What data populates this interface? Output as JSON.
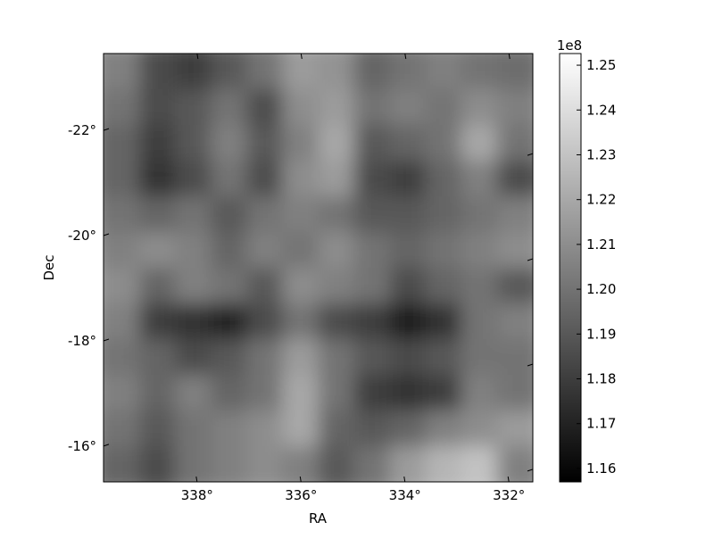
{
  "chart_data": {
    "type": "heatmap",
    "colormap": "gray",
    "xlabel": "RA",
    "ylabel": "Dec",
    "x_ticks": [
      338,
      336,
      334,
      332
    ],
    "x_tick_labels": [
      "338°",
      "336°",
      "334°",
      "332°"
    ],
    "y_ticks": [
      -22,
      -20,
      -18,
      -16
    ],
    "y_tick_labels": [
      "-22°",
      "-20°",
      "-18°",
      "-16°"
    ],
    "xlim": [
      339.8,
      331.54
    ],
    "ylim": [
      -23.46,
      -15.32
    ],
    "colorbar": {
      "offset_label": "1e8",
      "range": [
        1.157,
        1.2526
      ],
      "ticks": [
        1.16,
        1.17,
        1.18,
        1.19,
        1.2,
        1.21,
        1.22,
        1.23,
        1.24,
        1.25
      ],
      "tick_labels": [
        "1.16",
        "1.17",
        "1.18",
        "1.19",
        "1.20",
        "1.21",
        "1.22",
        "1.23",
        "1.24",
        "1.25"
      ]
    },
    "grid": false,
    "values_units": "x 1e8",
    "values": [
      [
        1.205,
        1.185,
        1.18,
        1.19,
        1.2,
        1.215,
        1.212,
        1.195,
        1.2,
        1.205,
        1.2,
        1.198
      ],
      [
        1.2,
        1.185,
        1.19,
        1.2,
        1.185,
        1.21,
        1.215,
        1.2,
        1.205,
        1.2,
        1.21,
        1.205
      ],
      [
        1.195,
        1.18,
        1.19,
        1.205,
        1.19,
        1.205,
        1.22,
        1.19,
        1.195,
        1.2,
        1.22,
        1.2
      ],
      [
        1.195,
        1.175,
        1.185,
        1.2,
        1.185,
        1.21,
        1.215,
        1.185,
        1.18,
        1.195,
        1.205,
        1.185
      ],
      [
        1.2,
        1.195,
        1.2,
        1.19,
        1.2,
        1.205,
        1.2,
        1.19,
        1.19,
        1.195,
        1.2,
        1.205
      ],
      [
        1.205,
        1.21,
        1.205,
        1.195,
        1.205,
        1.2,
        1.21,
        1.2,
        1.195,
        1.2,
        1.205,
        1.21
      ],
      [
        1.21,
        1.195,
        1.205,
        1.2,
        1.19,
        1.21,
        1.205,
        1.2,
        1.185,
        1.195,
        1.2,
        1.19
      ],
      [
        1.205,
        1.18,
        1.175,
        1.17,
        1.185,
        1.2,
        1.185,
        1.18,
        1.168,
        1.175,
        1.2,
        1.205
      ],
      [
        1.2,
        1.195,
        1.185,
        1.19,
        1.2,
        1.215,
        1.2,
        1.19,
        1.185,
        1.19,
        1.2,
        1.2
      ],
      [
        1.205,
        1.195,
        1.205,
        1.195,
        1.2,
        1.22,
        1.2,
        1.18,
        1.175,
        1.18,
        1.205,
        1.2
      ],
      [
        1.2,
        1.19,
        1.2,
        1.205,
        1.21,
        1.22,
        1.195,
        1.19,
        1.195,
        1.205,
        1.21,
        1.215
      ],
      [
        1.195,
        1.185,
        1.2,
        1.205,
        1.21,
        1.205,
        1.19,
        1.2,
        1.215,
        1.225,
        1.23,
        1.205
      ]
    ]
  }
}
